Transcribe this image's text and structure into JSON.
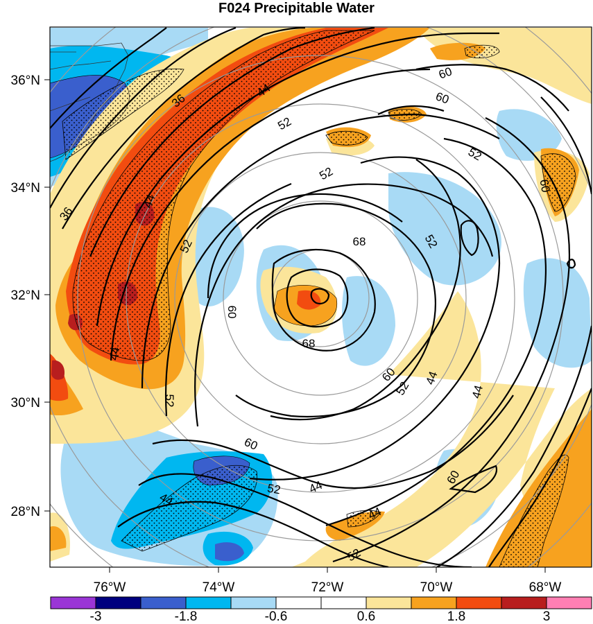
{
  "title": "F024 Precipitable Water",
  "map": {
    "lon_labels": [
      "76°W",
      "74°W",
      "72°W",
      "70°W",
      "68°W"
    ],
    "lat_labels": [
      "36°N",
      "34°N",
      "32°N",
      "30°N",
      "28°N"
    ],
    "contour_labels": [
      "36",
      "36",
      "44",
      "44",
      "44",
      "44",
      "44",
      "44",
      "44",
      "44",
      "52",
      "52",
      "52",
      "52",
      "52",
      "52",
      "52",
      "52",
      "52",
      "60",
      "60",
      "60",
      "60",
      "60",
      "60",
      "60",
      "68",
      "68"
    ]
  },
  "colorbar": {
    "colors": [
      "#9a35d6",
      "#00007f",
      "#3a5fcd",
      "#00b7f0",
      "#a8daf5",
      "#ffffff",
      "#ffffff",
      "#fbe59a",
      "#f7a21f",
      "#f24c10",
      "#b81e1e",
      "#ff7fb3"
    ],
    "labels": [
      "-3",
      "-1.8",
      "-0.6",
      "0.6",
      "1.8",
      "3"
    ]
  },
  "colors": {
    "positive_strong": "#f24c10",
    "positive_mid": "#f7a21f",
    "positive_weak": "#fbe59a",
    "negative_weak": "#a8daf5",
    "negative_mid": "#00b7f0",
    "negative_strong": "#3a5fcd",
    "negative_deep": "#00007f",
    "contour": "#000000",
    "grid": "#9a9a9a"
  }
}
